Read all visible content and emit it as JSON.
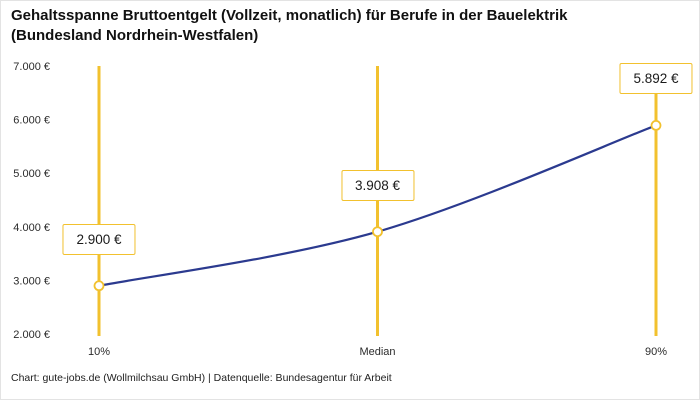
{
  "header": {
    "title": "Gehaltsspanne Bruttoentgelt (Vollzeit, monatlich) für Berufe in der Bauelektrik (Bundesland Nordrhein-Westfalen)"
  },
  "footer": {
    "credit": "Chart: gute-jobs.de (Wollmilchsau GmbH) | Datenquelle: Bundesagentur für Arbeit"
  },
  "chart_data": {
    "type": "line",
    "title": "Gehaltsspanne Bruttoentgelt (Vollzeit, monatlich) für Berufe in der Bauelektrik (Bundesland Nordrhein-Westfalen)",
    "categories": [
      "10%",
      "Median",
      "90%"
    ],
    "values": [
      2900,
      3908,
      5892
    ],
    "value_labels": [
      "2.900 €",
      "3.908 €",
      "5.892 €"
    ],
    "ylim": [
      2000,
      7000
    ],
    "y_ticks": [
      2000,
      3000,
      4000,
      5000,
      6000,
      7000
    ],
    "y_tick_labels": [
      "2.000 €",
      "3.000 €",
      "4.000 €",
      "5.000 €",
      "6.000 €",
      "7.000 €"
    ],
    "grid": false,
    "legend": "none",
    "colors": {
      "line": "#2b3a8f",
      "marker": "#f2c12e",
      "label_border": "#f2c12e",
      "text": "#1a1a1a",
      "axis_text": "#2b2b2b"
    }
  }
}
